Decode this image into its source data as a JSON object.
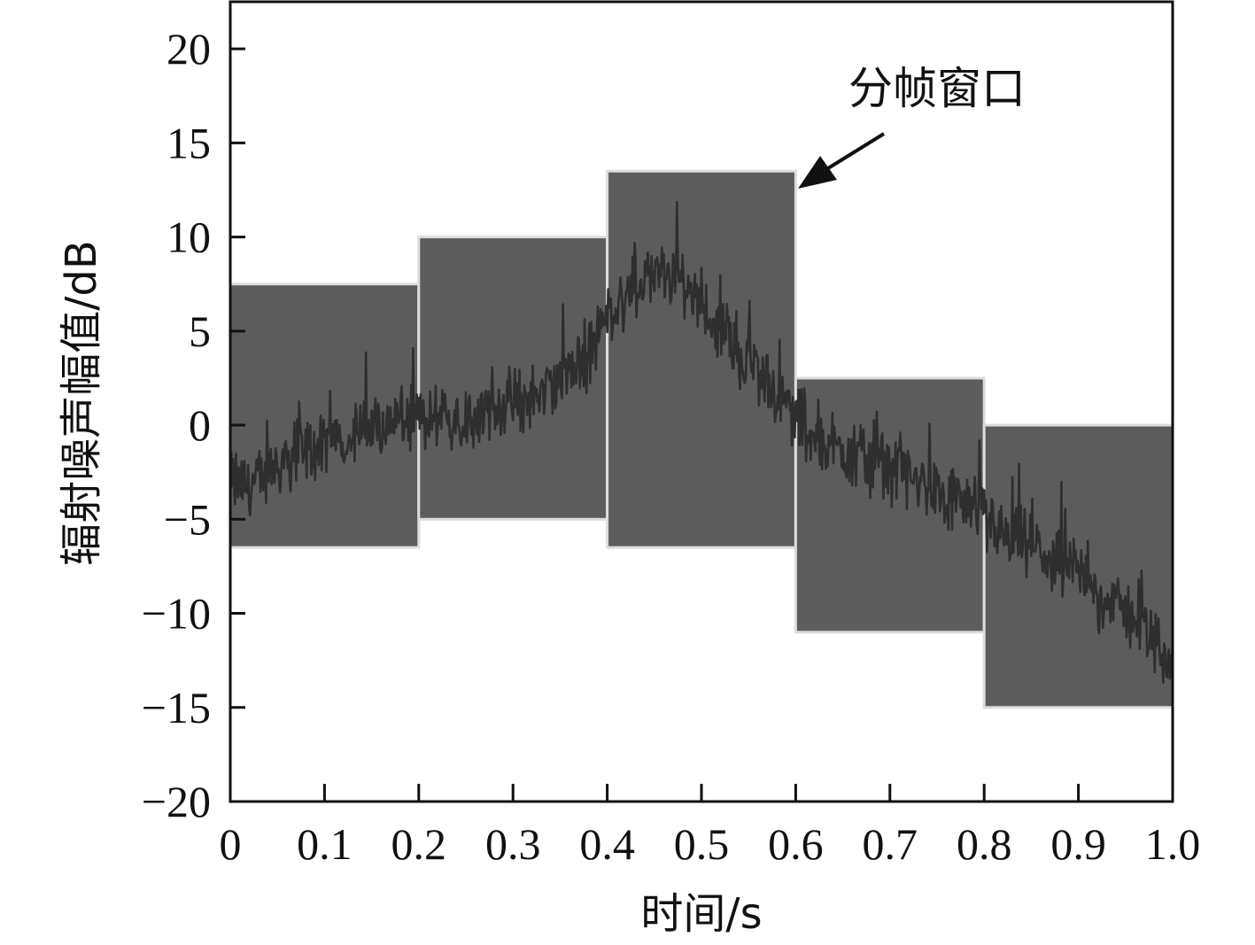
{
  "chart_data": {
    "type": "line",
    "xlabel": "时间/s",
    "ylabel": "辐射噪声幅值/dB",
    "xlim": [
      0,
      1.0
    ],
    "ylim": [
      -20,
      22.5
    ],
    "x_ticks": [
      0,
      0.1,
      0.2,
      0.3,
      0.4,
      0.5,
      0.6,
      0.7,
      0.8,
      0.9,
      1.0
    ],
    "x_tick_labels": [
      "0",
      "0.1",
      "0.2",
      "0.3",
      "0.4",
      "0.5",
      "0.6",
      "0.7",
      "0.8",
      "0.9",
      "1.0"
    ],
    "y_ticks": [
      20,
      15,
      10,
      5,
      0,
      -5,
      -10,
      -15,
      -20
    ],
    "y_tick_labels": [
      "20",
      "15",
      "10",
      "5",
      "0",
      "−5",
      "−10",
      "−15",
      "−20"
    ],
    "grid": false,
    "annotation": {
      "text": "分帧窗口",
      "points_to": {
        "x": 0.6,
        "y": 13.2
      }
    },
    "windows": [
      {
        "x0": 0.0,
        "x1": 0.2,
        "ymin": -6.5,
        "ymax": 7.5
      },
      {
        "x0": 0.2,
        "x1": 0.4,
        "ymin": -5.0,
        "ymax": 10.0
      },
      {
        "x0": 0.4,
        "x1": 0.6,
        "ymin": -6.5,
        "ymax": 13.5
      },
      {
        "x0": 0.6,
        "x1": 0.8,
        "ymin": -11.0,
        "ymax": 2.5
      },
      {
        "x0": 0.8,
        "x1": 1.0,
        "ymin": -15.0,
        "ymax": 0.0
      }
    ],
    "signal": {
      "x": [
        0,
        0.025,
        0.05,
        0.075,
        0.1,
        0.125,
        0.15,
        0.175,
        0.2,
        0.225,
        0.25,
        0.275,
        0.3,
        0.325,
        0.35,
        0.375,
        0.4,
        0.425,
        0.45,
        0.475,
        0.5,
        0.525,
        0.55,
        0.575,
        0.6,
        0.625,
        0.65,
        0.675,
        0.7,
        0.725,
        0.75,
        0.775,
        0.8,
        0.825,
        0.85,
        0.875,
        0.9,
        0.925,
        0.95,
        0.975,
        1.0
      ],
      "y": [
        -3.0,
        -3.2,
        -2.0,
        -1.5,
        -1.2,
        -0.5,
        -0.2,
        0.3,
        0.2,
        0.3,
        0.5,
        0.8,
        1.2,
        1.6,
        2.3,
        3.2,
        5.8,
        7.2,
        8.0,
        7.8,
        6.5,
        4.8,
        3.2,
        1.8,
        0.5,
        -0.6,
        -1.2,
        -1.8,
        -2.3,
        -3.0,
        -3.6,
        -4.2,
        -5.0,
        -5.8,
        -6.5,
        -7.3,
        -8.0,
        -8.9,
        -10.0,
        -11.0,
        -12.5
      ]
    }
  }
}
